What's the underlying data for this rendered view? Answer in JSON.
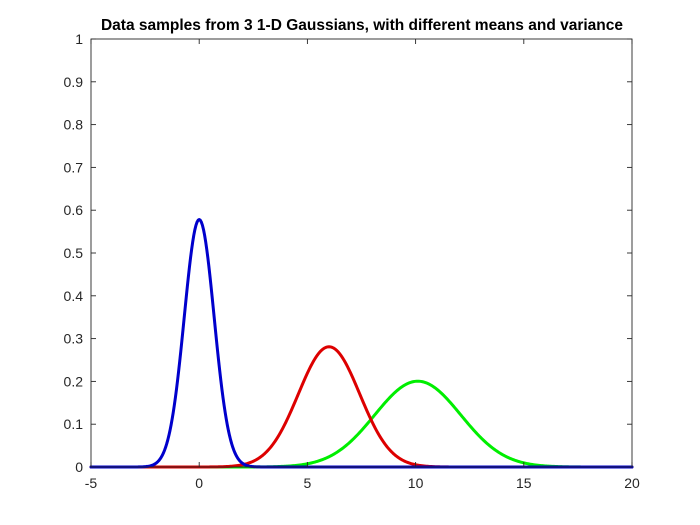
{
  "chart_data": {
    "type": "line",
    "title": "Data samples from 3 1-D Gaussians, with different means and variance",
    "xlabel": "",
    "ylabel": "",
    "xlim": [
      -5,
      20
    ],
    "ylim": [
      0,
      1
    ],
    "xticks": [
      -5,
      0,
      5,
      10,
      15,
      20
    ],
    "yticks": [
      0,
      0.1,
      0.2,
      0.3,
      0.4,
      0.5,
      0.6,
      0.7,
      0.8,
      0.9,
      1
    ],
    "xtick_labels": [
      "-5",
      "0",
      "5",
      "10",
      "15",
      "20"
    ],
    "ytick_labels": [
      "0",
      "0.1",
      "0.2",
      "0.3",
      "0.4",
      "0.5",
      "0.6",
      "0.7",
      "0.8",
      "0.9",
      "1"
    ],
    "grid": false,
    "legend": "none",
    "series": [
      {
        "color": "#0000cc",
        "gaussian": {
          "mean": 0,
          "sigma": 0.69
        },
        "x": [
          -5,
          -4,
          -3,
          -2.5,
          -2,
          -1.5,
          -1,
          -0.5,
          0,
          0.5,
          1,
          1.5,
          2,
          2.5,
          3,
          4,
          5,
          10,
          15,
          20
        ],
        "y": [
          0,
          0,
          0.0003,
          0.0081,
          0.0849,
          0.1101,
          0.2017,
          0.4484,
          0.5782,
          0.4484,
          0.2017,
          0.1101,
          0.0849,
          0.0081,
          0.0003,
          0,
          0,
          0,
          0,
          0
        ]
      },
      {
        "color": "#dd0000",
        "gaussian": {
          "mean": 6,
          "sigma": 1.42
        },
        "x": [
          -5,
          0,
          1,
          2,
          3,
          4,
          5,
          5.5,
          6,
          6.5,
          7,
          8,
          9,
          10,
          11,
          12,
          15,
          20
        ],
        "y": [
          0,
          0.0004,
          0.0055,
          0.0054,
          0.0301,
          0.1041,
          0.2186,
          0.2649,
          0.2809,
          0.2649,
          0.2186,
          0.1041,
          0.0301,
          0.0054,
          0.0006,
          0,
          0,
          0
        ]
      },
      {
        "color": "#00ee00",
        "gaussian": {
          "mean": 10.1,
          "sigma": 1.99
        },
        "x": [
          -5,
          0,
          2,
          4,
          5,
          6,
          7,
          8,
          9,
          10,
          10.1,
          11,
          12,
          13,
          14,
          15,
          16,
          18,
          20
        ],
        "y": [
          0,
          0,
          0.0005,
          0.0019,
          0.0074,
          0.0218,
          0.0546,
          0.1103,
          0.1718,
          0.2003,
          0.2005,
          0.1806,
          0.1267,
          0.0689,
          0.0292,
          0.0096,
          0.0025,
          0.0001,
          0
        ]
      }
    ]
  }
}
